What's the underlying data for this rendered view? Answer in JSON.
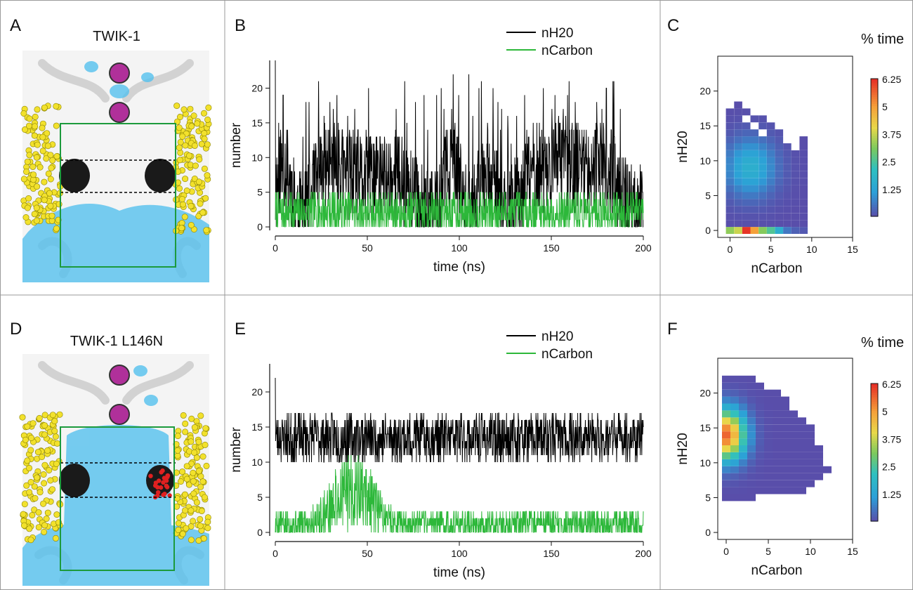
{
  "panels": {
    "A": {
      "letter": "A",
      "title": "TWIK-1"
    },
    "B": {
      "letter": "B"
    },
    "C": {
      "letter": "C",
      "colorbar_title": "% time"
    },
    "D": {
      "letter": "D",
      "title": "TWIK-1 L146N"
    },
    "E": {
      "letter": "E"
    },
    "F": {
      "letter": "F",
      "colorbar_title": "% time"
    }
  },
  "colors": {
    "water_trace": "#000000",
    "carbon_trace": "#2db83a",
    "box": "#1c9a3c",
    "lipid": "#f2e12c",
    "water_density": "#55c1ee",
    "ion": "#b0309a",
    "protein": "#e9e9e9",
    "mutation": "#e02020"
  },
  "chart_data": [
    {
      "id": "B",
      "type": "line",
      "xlabel": "time (ns)",
      "ylabel": "number",
      "xlim": [
        0,
        200
      ],
      "ylim": [
        -0.5,
        24
      ],
      "xticks": [
        0,
        50,
        100,
        150,
        200
      ],
      "yticks": [
        0,
        5,
        10,
        15,
        20
      ],
      "legend": "top-right",
      "series": [
        {
          "name": "nH20",
          "color": "#000000",
          "mean": 5.5,
          "spread": 4.2,
          "mode": "bursty",
          "seed": 11,
          "min": 0,
          "max": 24
        },
        {
          "name": "nCarbon",
          "color": "#2db83a",
          "mean": 2.2,
          "spread": 1.8,
          "mode": "low",
          "seed": 7,
          "min": 0,
          "max": 8
        }
      ]
    },
    {
      "id": "C",
      "type": "heatmap",
      "xlabel": "nCarbon",
      "ylabel": "nH20",
      "xlim": [
        -1.5,
        15
      ],
      "ylim": [
        -1,
        25
      ],
      "xticks": [
        0,
        5,
        10,
        15
      ],
      "yticks": [
        0,
        5,
        10,
        15,
        20
      ],
      "colorbar": {
        "title": "% time",
        "ticks": [
          "6.25",
          "5",
          "3.75",
          "2.5",
          "1.25"
        ],
        "max": 6.25
      },
      "cells_row0": [
        3.3,
        3.8,
        6.2,
        5.0,
        3.2,
        2.6,
        1.6,
        0.6,
        0.3,
        0.2
      ],
      "columns_ymax": [
        17,
        18,
        17,
        16,
        16,
        15,
        14,
        12,
        11,
        13
      ],
      "peak_center": [
        2.5,
        9
      ]
    },
    {
      "id": "E",
      "type": "line",
      "xlabel": "time (ns)",
      "ylabel": "number",
      "xlim": [
        0,
        200
      ],
      "ylim": [
        -0.5,
        24
      ],
      "xticks": [
        0,
        50,
        100,
        150,
        200
      ],
      "yticks": [
        0,
        5,
        10,
        15,
        20
      ],
      "legend": "top-right",
      "series": [
        {
          "name": "nH20",
          "color": "#000000",
          "mean": 13.5,
          "spread": 2.2,
          "mode": "steady",
          "seed": 23,
          "min": 7,
          "max": 22
        },
        {
          "name": "nCarbon",
          "color": "#2db83a",
          "mean": 1.2,
          "spread": 1.2,
          "mode": "hump",
          "seed": 5,
          "min": 0,
          "max": 11
        }
      ]
    },
    {
      "id": "F",
      "type": "heatmap",
      "xlabel": "nCarbon",
      "ylabel": "nH20",
      "xlim": [
        -1,
        15
      ],
      "ylim": [
        -1,
        25
      ],
      "xticks": [
        0,
        5,
        10,
        15
      ],
      "yticks": [
        0,
        5,
        10,
        15,
        20
      ],
      "colorbar": {
        "title": "% time",
        "ticks": [
          "6.25",
          "5",
          "3.75",
          "2.5",
          "1.25"
        ],
        "max": 6.25
      },
      "columns_yrange": [
        [
          5,
          22
        ],
        [
          5,
          22
        ],
        [
          5,
          22
        ],
        [
          5,
          22
        ],
        [
          6,
          21
        ],
        [
          6,
          20
        ],
        [
          6,
          20
        ],
        [
          6,
          19
        ],
        [
          6,
          17
        ],
        [
          6,
          16
        ],
        [
          7,
          15
        ],
        [
          8,
          12
        ],
        [
          9,
          9
        ]
      ],
      "peak_center": [
        0,
        14
      ]
    }
  ]
}
